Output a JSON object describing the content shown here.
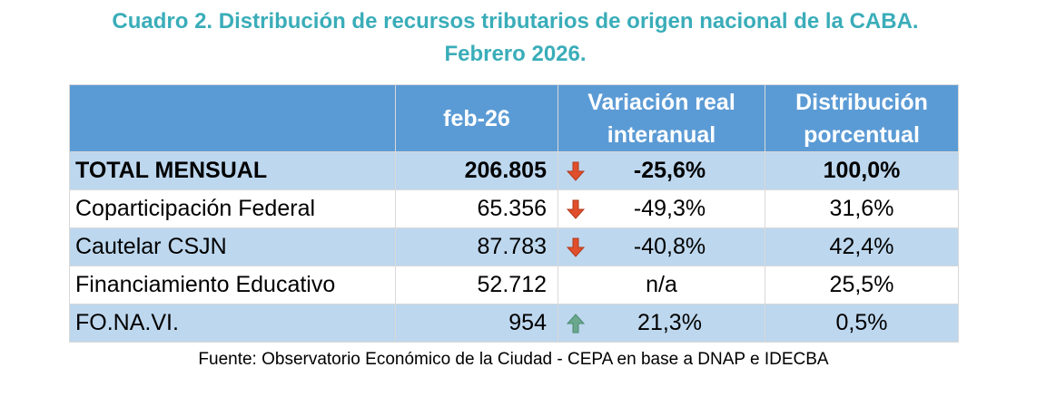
{
  "title": {
    "line1": "Cuadro 2. Distribución de recursos tributarios de origen nacional de la CABA.",
    "line2": "Febrero 2026."
  },
  "table": {
    "headers": {
      "concept": "",
      "month": "feb-26",
      "variation": "Variación real interanual",
      "distribution": "Distribución porcentual"
    },
    "rows": [
      {
        "concept": "TOTAL MENSUAL",
        "amount": "206.805",
        "trend": "down",
        "variation": "-25,6%",
        "distribution": "100,0%"
      },
      {
        "concept": "Coparticipación Federal",
        "amount": "65.356",
        "trend": "down",
        "variation": "-49,3%",
        "distribution": "31,6%"
      },
      {
        "concept": "Cautelar CSJN",
        "amount": "87.783",
        "trend": "down",
        "variation": "-40,8%",
        "distribution": "42,4%"
      },
      {
        "concept": "Financiamiento Educativo",
        "amount": "52.712",
        "trend": "none",
        "variation": "n/a",
        "distribution": "25,5%"
      },
      {
        "concept": "FO.NA.VI.",
        "amount": "954",
        "trend": "up",
        "variation": "21,3%",
        "distribution": "0,5%"
      }
    ]
  },
  "source": "Fuente: Observatorio Económico de la Ciudad - CEPA en base a DNAP e IDECBA",
  "colors": {
    "title": "#3AADB9",
    "header_bg": "#5B9BD5",
    "band_bg": "#BDD7EE",
    "arrow_down": "#E04E2B",
    "arrow_up": "#6AA88E"
  }
}
